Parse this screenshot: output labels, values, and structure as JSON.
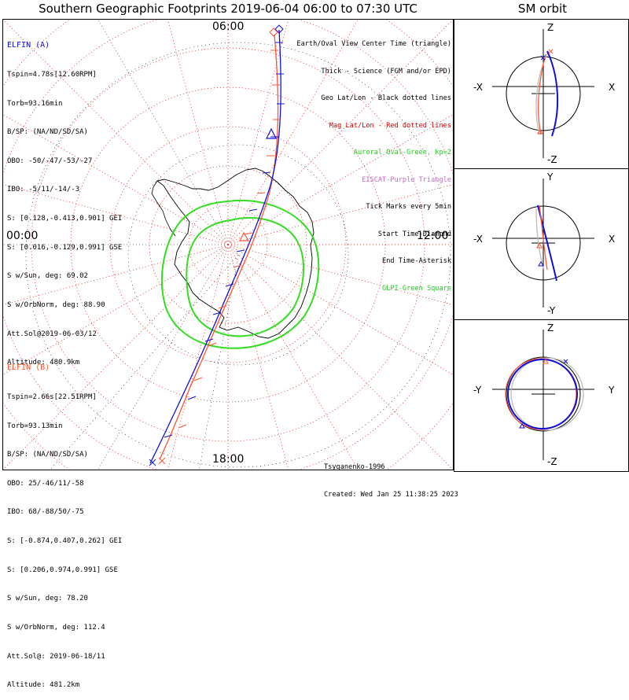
{
  "title": "Southern Geographic Footprints 2019-06-04 06:00 to 07:30 UTC",
  "orbit_panel_title": "SM orbit",
  "time_labels": {
    "top": "06:00",
    "left": "00:00",
    "right": "12:00",
    "bottom": "18:00"
  },
  "elfin_a": {
    "name": "ELFIN (A)",
    "color": "#1010dd",
    "lines": [
      "Tspin=4.78s[12.60RPM]",
      "Torb=93.16min",
      "B/SP: (NA/ND/SD/SA)",
      "OBO: -50/-47/-53/-27",
      "IBO: -5/11/-14/-3",
      "S: [0.128,-0.413,0.901] GEI",
      "S: [0.016,-0.129,0.991] GSE",
      "S w/Sun, deg: 69.02",
      "S w/OrbNorm, deg: 88.90",
      "Att.Sol@2019-06-03/12",
      "Altitude: 480.9km"
    ]
  },
  "elfin_b": {
    "name": "ELFIN (B)",
    "color": "#ff5533",
    "lines": [
      "Tspin=2.66s[22.51RPM]",
      "Torb=93.13min",
      "B/SP: (NA/ND/SD/SA)",
      "OBO: 25/-46/11/-58",
      "IBO: 68/-88/50/-75",
      "S: [-0.874,0.407,0.262] GEI",
      "S: [0.206,0.974,0.991] GSE",
      "S w/Sun, deg: 78.20",
      "S w/OrbNorm, deg: 112.4",
      "Att.Sol@: 2019-06-18/11",
      "Altitude: 481.2km"
    ]
  },
  "legend": [
    {
      "text": "Earth/Oval View Center Time (triangle)",
      "color": "#000000"
    },
    {
      "text": "Thick - Science (FGM and/or EPD)",
      "color": "#000000"
    },
    {
      "text": "Geo Lat/Lon - Black dotted lines",
      "color": "#000000"
    },
    {
      "text": "Mag Lat/Lon - Red dotted lines",
      "color": "#dd0000"
    },
    {
      "text": "Auroral Oval-Green, kp=2",
      "color": "#22cc22"
    },
    {
      "text": "EISCAT-Purple Triangle",
      "color": "#cc66cc"
    },
    {
      "text": "Tick Marks every 5min",
      "color": "#000000"
    },
    {
      "text": "Start Time-Diamond",
      "color": "#000000"
    },
    {
      "text": "End Time-Asterisk",
      "color": "#000000"
    },
    {
      "text": "GLPI-Green Square",
      "color": "#22cc22"
    }
  ],
  "credit": {
    "author": "Tsyganenko-1996",
    "created": "Created: Wed Jan 25 11:38:25 2023"
  },
  "orbit_panels": [
    {
      "top": "Z",
      "bottom": "-Z",
      "left": "-X",
      "right": "X"
    },
    {
      "top": "Y",
      "bottom": "-Y",
      "left": "-X",
      "right": "X"
    },
    {
      "top": "Z",
      "bottom": "-Z",
      "left": "-Y",
      "right": "Y"
    }
  ]
}
